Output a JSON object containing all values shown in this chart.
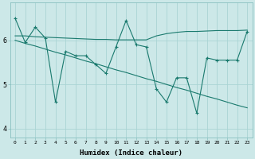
{
  "xlabel": "Humidex (Indice chaleur)",
  "background_color": "#cce8e8",
  "line_color": "#1a7a6e",
  "grid_color": "#aad4d4",
  "x_data": [
    0,
    1,
    2,
    3,
    4,
    5,
    6,
    7,
    8,
    9,
    10,
    11,
    12,
    13,
    14,
    15,
    16,
    17,
    18,
    19,
    20,
    21,
    22,
    23
  ],
  "y_main": [
    6.5,
    5.95,
    6.3,
    6.05,
    4.6,
    5.75,
    5.65,
    5.65,
    5.45,
    5.25,
    5.85,
    6.45,
    5.9,
    5.85,
    4.9,
    4.6,
    5.15,
    5.15,
    4.35,
    5.6,
    5.55,
    5.55,
    5.55,
    6.2
  ],
  "y_trend_flat": [
    6.1,
    6.1,
    6.08,
    6.07,
    6.06,
    6.05,
    6.04,
    6.03,
    6.02,
    6.02,
    6.01,
    6.01,
    6.01,
    6.01,
    6.1,
    6.15,
    6.18,
    6.2,
    6.2,
    6.21,
    6.22,
    6.22,
    6.22,
    6.23
  ],
  "y_trend_decline": [
    6.0,
    5.93,
    5.87,
    5.8,
    5.73,
    5.67,
    5.6,
    5.53,
    5.47,
    5.4,
    5.33,
    5.27,
    5.2,
    5.13,
    5.07,
    5.0,
    4.93,
    4.87,
    4.8,
    4.73,
    4.67,
    4.6,
    4.53,
    4.47
  ],
  "yticks": [
    4,
    5,
    6
  ],
  "ylim": [
    3.8,
    6.85
  ],
  "xlim": [
    -0.5,
    23.5
  ],
  "xticks": [
    0,
    1,
    2,
    3,
    4,
    5,
    6,
    7,
    8,
    9,
    10,
    11,
    12,
    13,
    14,
    15,
    16,
    17,
    18,
    19,
    20,
    21,
    22,
    23
  ]
}
